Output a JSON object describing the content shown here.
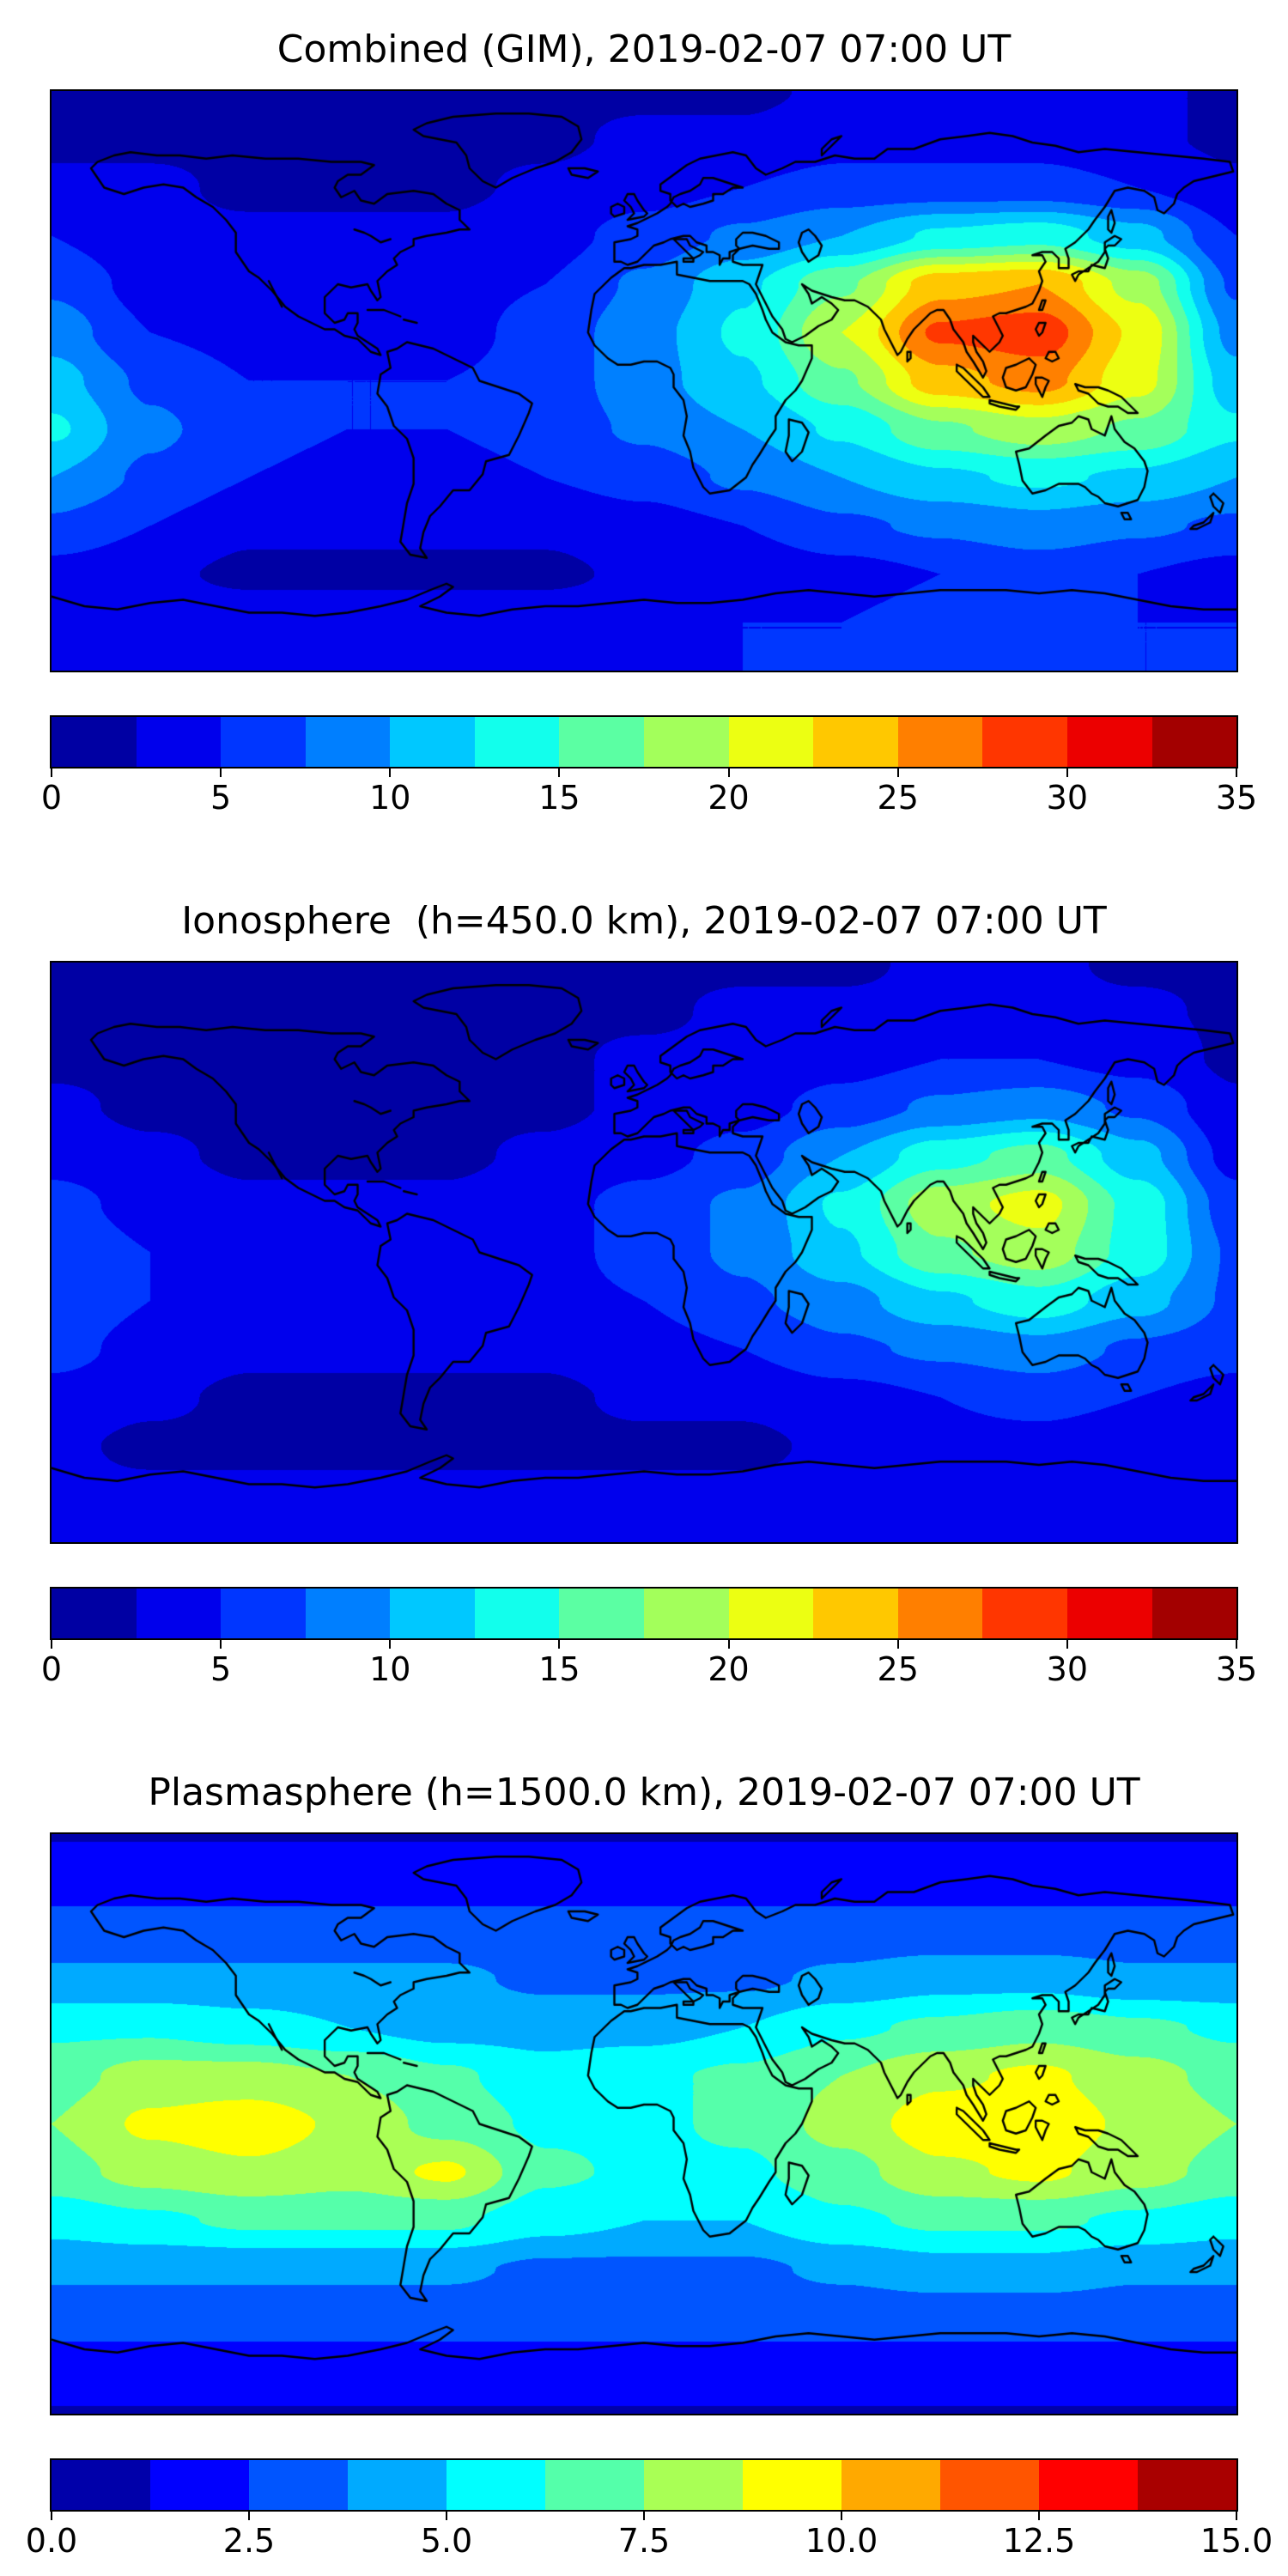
{
  "chart_data": [
    {
      "type": "heatmap",
      "title": "Combined (GIM), 2019-02-07 07:00 UT",
      "colormap": "jet",
      "projection": "equirectangular",
      "levels": {
        "min": 0,
        "max": 35,
        "n": 14
      },
      "colorbar": {
        "orientation": "horizontal",
        "tick_values": [
          0,
          5,
          10,
          15,
          20,
          25,
          30,
          35
        ],
        "tick_labels": [
          "0",
          "5",
          "10",
          "15",
          "20",
          "25",
          "30",
          "35"
        ]
      },
      "grid": {
        "lon": [
          -180,
          -150,
          -120,
          -90,
          -60,
          -30,
          0,
          30,
          60,
          90,
          120,
          150,
          180
        ],
        "lat": [
          90,
          75,
          60,
          45,
          30,
          15,
          0,
          -15,
          -30,
          -45,
          -60,
          -75,
          -90
        ],
        "values": [
          [
            2,
            2,
            2,
            2,
            2,
            2,
            2,
            2,
            3,
            3,
            3,
            3,
            2
          ],
          [
            2,
            2,
            2,
            2,
            2,
            2,
            3,
            3,
            4,
            4,
            4,
            3,
            2
          ],
          [
            3,
            3,
            2,
            2,
            2,
            3,
            4,
            5,
            6,
            6,
            6,
            5,
            3
          ],
          [
            5,
            3,
            3,
            3,
            3,
            4,
            6,
            8,
            10,
            13,
            14,
            11,
            5
          ],
          [
            7,
            4,
            4,
            3,
            4,
            5,
            8,
            12,
            17,
            24,
            25,
            19,
            7
          ],
          [
            9,
            5,
            4,
            4,
            4,
            6,
            9,
            13,
            20,
            28,
            29,
            22,
            9
          ],
          [
            11,
            7,
            5,
            5,
            5,
            6,
            9,
            12,
            17,
            24,
            26,
            21,
            11
          ],
          [
            13,
            8,
            6,
            5,
            5,
            6,
            8,
            10,
            13,
            17,
            19,
            17,
            13
          ],
          [
            10,
            7,
            5,
            4,
            4,
            5,
            6,
            8,
            10,
            12,
            13,
            12,
            10
          ],
          [
            7,
            5,
            3,
            3,
            3,
            3,
            4,
            5,
            7,
            8,
            9,
            8,
            7
          ],
          [
            4,
            3,
            2,
            2,
            2,
            2,
            3,
            3,
            4,
            5,
            6,
            5,
            4
          ],
          [
            5,
            4,
            4,
            4,
            4,
            4,
            4,
            5,
            5,
            6,
            6,
            5,
            5
          ],
          [
            5,
            5,
            5,
            5,
            5,
            5,
            5,
            5,
            5,
            5,
            5,
            5,
            5
          ]
        ]
      }
    },
    {
      "type": "heatmap",
      "title": "Ionosphere  (h=450.0 km), 2019-02-07 07:00 UT",
      "colormap": "jet",
      "projection": "equirectangular",
      "levels": {
        "min": 0,
        "max": 35,
        "n": 14
      },
      "colorbar": {
        "orientation": "horizontal",
        "tick_values": [
          0,
          5,
          10,
          15,
          20,
          25,
          30,
          35
        ],
        "tick_labels": [
          "0",
          "5",
          "10",
          "15",
          "20",
          "25",
          "30",
          "35"
        ]
      },
      "grid": {
        "lon": [
          -180,
          -150,
          -120,
          -90,
          -60,
          -30,
          0,
          30,
          60,
          90,
          120,
          150,
          180
        ],
        "lat": [
          90,
          75,
          60,
          45,
          30,
          15,
          0,
          -15,
          -30,
          -45,
          -60,
          -75,
          -90
        ],
        "values": [
          [
            2,
            2,
            2,
            2,
            2,
            2,
            2,
            2,
            2,
            3,
            3,
            2,
            2
          ],
          [
            2,
            2,
            2,
            2,
            2,
            2,
            2,
            3,
            3,
            3,
            3,
            3,
            2
          ],
          [
            2,
            2,
            2,
            2,
            2,
            2,
            3,
            3,
            4,
            5,
            5,
            4,
            2
          ],
          [
            3,
            2,
            2,
            2,
            2,
            2,
            3,
            4,
            6,
            8,
            9,
            7,
            3
          ],
          [
            4,
            3,
            2,
            2,
            2,
            3,
            4,
            6,
            10,
            14,
            16,
            11,
            4
          ],
          [
            6,
            4,
            3,
            3,
            3,
            4,
            6,
            8,
            13,
            19,
            21,
            14,
            6
          ],
          [
            7,
            5,
            4,
            4,
            4,
            4,
            6,
            8,
            12,
            17,
            19,
            14,
            7
          ],
          [
            7,
            5,
            4,
            4,
            4,
            4,
            5,
            7,
            9,
            12,
            14,
            11,
            7
          ],
          [
            6,
            4,
            3,
            3,
            3,
            3,
            4,
            5,
            7,
            8,
            9,
            7,
            6
          ],
          [
            4,
            3,
            2,
            2,
            2,
            2,
            3,
            3,
            4,
            5,
            6,
            5,
            4
          ],
          [
            3,
            2,
            2,
            2,
            2,
            2,
            2,
            2,
            3,
            4,
            4,
            3,
            3
          ],
          [
            3,
            3,
            3,
            3,
            3,
            3,
            3,
            3,
            3,
            4,
            4,
            3,
            3
          ],
          [
            3,
            3,
            3,
            3,
            3,
            3,
            3,
            3,
            3,
            3,
            3,
            3,
            3
          ]
        ]
      }
    },
    {
      "type": "heatmap",
      "title": "Plasmasphere (h=1500.0 km), 2019-02-07 07:00 UT",
      "colormap": "jet",
      "projection": "equirectangular",
      "levels": {
        "min": 0,
        "max": 15,
        "n": 12
      },
      "colorbar": {
        "orientation": "horizontal",
        "tick_values": [
          0,
          2.5,
          5,
          7.5,
          10,
          12.5,
          15
        ],
        "tick_labels": [
          "0.0",
          "2.5",
          "5.0",
          "7.5",
          "10.0",
          "12.5",
          "15.0"
        ]
      },
      "grid": {
        "lon": [
          -180,
          -150,
          -120,
          -90,
          -60,
          -30,
          0,
          30,
          60,
          90,
          120,
          150,
          180
        ],
        "lat": [
          90,
          75,
          60,
          45,
          30,
          15,
          0,
          -15,
          -30,
          -45,
          -60,
          -75,
          -90
        ],
        "values": [
          [
            1.2,
            1.2,
            1.2,
            1.2,
            1.2,
            1.2,
            1.2,
            1.2,
            1.2,
            1.2,
            1.2,
            1.2,
            1.2
          ],
          [
            2,
            2,
            2,
            2,
            2,
            2,
            2,
            2,
            2,
            2,
            2,
            2,
            2
          ],
          [
            3,
            3,
            3,
            3,
            3,
            3,
            3,
            3,
            3,
            3,
            3,
            3,
            3
          ],
          [
            4,
            4,
            4,
            4,
            4,
            3.5,
            3.5,
            3.5,
            4,
            4.5,
            4.5,
            4,
            4
          ],
          [
            6,
            6,
            5.5,
            5,
            4.5,
            4.5,
            4.5,
            5,
            6,
            6.5,
            7,
            6.5,
            6
          ],
          [
            7,
            8,
            8,
            7.5,
            6.5,
            5.5,
            6,
            6.5,
            7.5,
            8.5,
            9,
            8,
            7
          ],
          [
            7.5,
            9,
            9.5,
            8.5,
            7,
            6,
            6,
            6.5,
            8,
            9.5,
            9.5,
            8.5,
            7.5
          ],
          [
            7,
            8,
            8.5,
            8,
            9,
            6.5,
            6,
            6,
            7,
            8.5,
            9,
            8,
            7
          ],
          [
            5.5,
            6,
            6.5,
            6.5,
            6.5,
            5.5,
            5,
            5,
            6,
            6.5,
            6.5,
            6,
            5.5
          ],
          [
            4,
            4,
            4,
            4,
            4,
            3.5,
            3.5,
            3.5,
            4,
            4.5,
            4.5,
            4,
            4
          ],
          [
            3,
            3,
            3,
            3,
            3,
            3,
            3,
            3,
            3,
            3,
            3,
            3,
            3
          ],
          [
            2,
            2,
            2,
            2,
            2,
            2,
            2,
            2,
            2,
            2,
            2,
            2,
            2
          ],
          [
            1.2,
            1.2,
            1.2,
            1.2,
            1.2,
            1.2,
            1.2,
            1.2,
            1.2,
            1.2,
            1.2,
            1.2,
            1.2
          ]
        ]
      }
    }
  ]
}
